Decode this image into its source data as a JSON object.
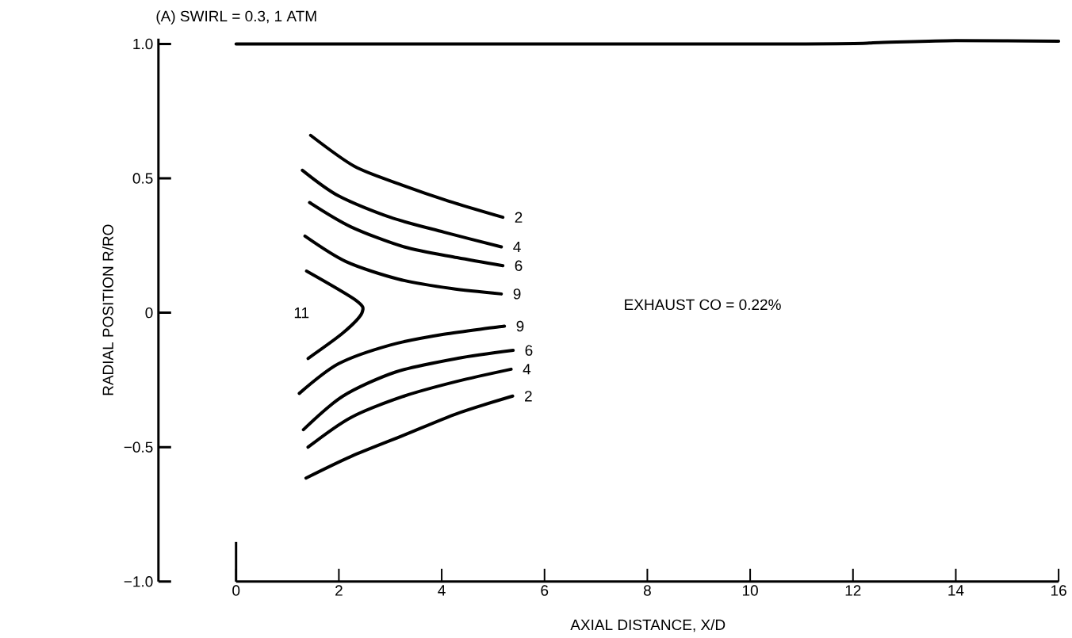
{
  "chart_data": {
    "type": "line",
    "title": "(A) SWIRL = 0.3, 1 ATM",
    "xlabel": "AXIAL DISTANCE, X/D",
    "ylabel": "RADIAL POSITION  R/RO",
    "annotations": [
      "EXHAUST CO = 0.22%"
    ],
    "xlim": [
      0,
      16
    ],
    "ylim": [
      -1.0,
      1.02
    ],
    "xticks": [
      0,
      2,
      4,
      6,
      8,
      10,
      12,
      14,
      16
    ],
    "yticks": [
      {
        "value": -1.0,
        "label": "−1.0"
      },
      {
        "value": -0.5,
        "label": "−0.5"
      },
      {
        "value": 0,
        "label": "0"
      },
      {
        "value": 0.5,
        "label": "0.5"
      },
      {
        "value": 1.0,
        "label": "1.0"
      }
    ],
    "line_style": "solid",
    "series": [
      {
        "color": "#000000",
        "x": [
          0,
          11,
          12.5,
          14,
          16
        ],
        "values": [
          1.0,
          1.0,
          1.005,
          1.012,
          1.01
        ]
      },
      {
        "name": "2",
        "color": "#000000",
        "x": [
          1.45,
          2.3,
          3.16,
          4.14,
          5.19
        ],
        "values": [
          0.66,
          0.545,
          0.48,
          0.415,
          0.355
        ]
      },
      {
        "name": "4",
        "color": "#000000",
        "x": [
          1.29,
          1.99,
          3.0,
          4.04,
          5.16
        ],
        "values": [
          0.53,
          0.435,
          0.355,
          0.3,
          0.245
        ]
      },
      {
        "name": "6",
        "color": "#000000",
        "x": [
          1.43,
          2.23,
          3.27,
          4.3,
          5.19
        ],
        "values": [
          0.41,
          0.32,
          0.245,
          0.205,
          0.175
        ]
      },
      {
        "name": "9",
        "color": "#000000",
        "x": [
          1.34,
          2.14,
          3.16,
          4.19,
          5.16
        ],
        "values": [
          0.285,
          0.19,
          0.125,
          0.09,
          0.07
        ]
      },
      {
        "name": "11",
        "color": "#000000",
        "x": [
          1.37,
          2.34,
          2.45,
          2.08,
          1.4
        ],
        "values": [
          0.155,
          0.045,
          0.0,
          -0.075,
          -0.17
        ]
      },
      {
        "name": "9",
        "color": "#000000",
        "x": [
          1.23,
          1.99,
          3.0,
          4.04,
          5.22
        ],
        "values": [
          -0.3,
          -0.19,
          -0.12,
          -0.08,
          -0.05
        ]
      },
      {
        "name": "6",
        "color": "#000000",
        "x": [
          1.31,
          2.08,
          3.11,
          4.3,
          5.39
        ],
        "values": [
          -0.435,
          -0.31,
          -0.22,
          -0.17,
          -0.14
        ]
      },
      {
        "name": "4",
        "color": "#000000",
        "x": [
          1.4,
          2.23,
          3.27,
          4.3,
          5.35
        ],
        "values": [
          -0.5,
          -0.39,
          -0.31,
          -0.255,
          -0.21
        ]
      },
      {
        "name": "2",
        "color": "#000000",
        "x": [
          1.36,
          2.23,
          3.27,
          4.3,
          5.38
        ],
        "values": [
          -0.615,
          -0.535,
          -0.455,
          -0.375,
          -0.31
        ]
      }
    ]
  }
}
